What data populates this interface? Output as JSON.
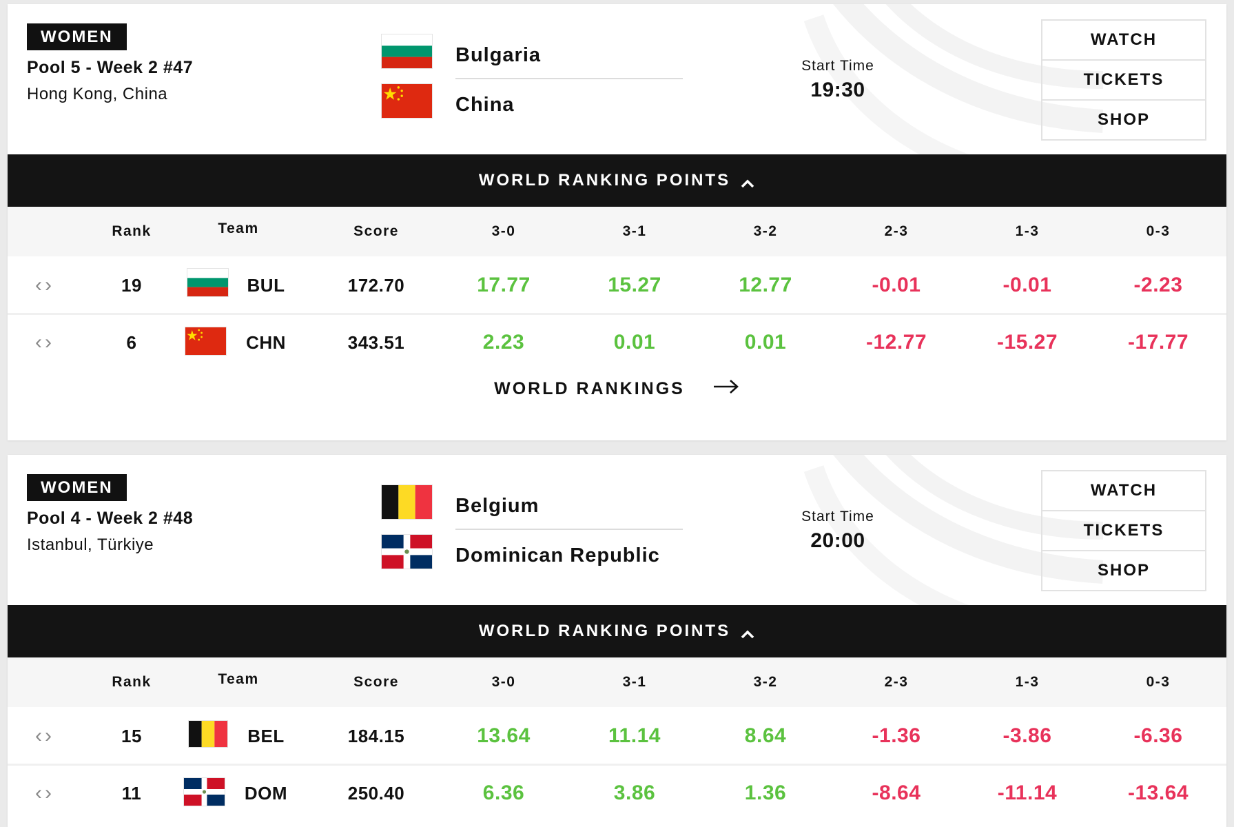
{
  "matches": [
    {
      "category": "WOMEN",
      "pool": "Pool 5 - Week 2 #47",
      "venue": "Hong Kong, China",
      "team_a": {
        "name": "Bulgaria",
        "flag": "flag-bulgaria"
      },
      "team_b": {
        "name": "China",
        "flag": "flag-china"
      },
      "start_label": "Start Time",
      "start_time": "19:30",
      "actions": {
        "watch": "WATCH",
        "tickets": "TICKETS",
        "shop": "SHOP"
      },
      "wrp_label": "WORLD RANKING POINTS",
      "headers": {
        "rank": "Rank",
        "team": "Team",
        "score": "Score",
        "s30": "3-0",
        "s31": "3-1",
        "s32": "3-2",
        "s23": "2-3",
        "s13": "1-3",
        "s03": "0-3"
      },
      "rows": [
        {
          "rank": "19",
          "code": "BUL",
          "flag": "flag-bulgaria",
          "score": "172.70",
          "s30": "17.77",
          "s31": "15.27",
          "s32": "12.77",
          "s23": "-0.01",
          "s13": "-0.01",
          "s03": "-2.23"
        },
        {
          "rank": "6",
          "code": "CHN",
          "flag": "flag-china",
          "score": "343.51",
          "s30": "2.23",
          "s31": "0.01",
          "s32": "0.01",
          "s23": "-12.77",
          "s13": "-15.27",
          "s03": "-17.77"
        }
      ],
      "rankings_link": "WORLD RANKINGS"
    },
    {
      "category": "WOMEN",
      "pool": "Pool 4 - Week 2 #48",
      "venue": "Istanbul, Türkiye",
      "team_a": {
        "name": "Belgium",
        "flag": "flag-belgium"
      },
      "team_b": {
        "name": "Dominican Republic",
        "flag": "flag-dominican-republic"
      },
      "start_label": "Start Time",
      "start_time": "20:00",
      "actions": {
        "watch": "WATCH",
        "tickets": "TICKETS",
        "shop": "SHOP"
      },
      "wrp_label": "WORLD RANKING POINTS",
      "headers": {
        "rank": "Rank",
        "team": "Team",
        "score": "Score",
        "s30": "3-0",
        "s31": "3-1",
        "s32": "3-2",
        "s23": "2-3",
        "s13": "1-3",
        "s03": "0-3"
      },
      "rows": [
        {
          "rank": "15",
          "code": "BEL",
          "flag": "flag-belgium",
          "score": "184.15",
          "s30": "13.64",
          "s31": "11.14",
          "s32": "8.64",
          "s23": "-1.36",
          "s13": "-3.86",
          "s03": "-6.36"
        },
        {
          "rank": "11",
          "code": "DOM",
          "flag": "flag-dominican-republic",
          "score": "250.40",
          "s30": "6.36",
          "s31": "3.86",
          "s32": "1.36",
          "s23": "-8.64",
          "s13": "-11.14",
          "s03": "-13.64"
        }
      ]
    }
  ],
  "icons": {
    "collapse": "chevron-up-icon",
    "rankings_arrow": "arrow-right-icon",
    "row_nav": "chevron-left-right-icon"
  },
  "colors": {
    "positive": "#5bc23f",
    "negative": "#e8325a",
    "bar": "#141414"
  }
}
